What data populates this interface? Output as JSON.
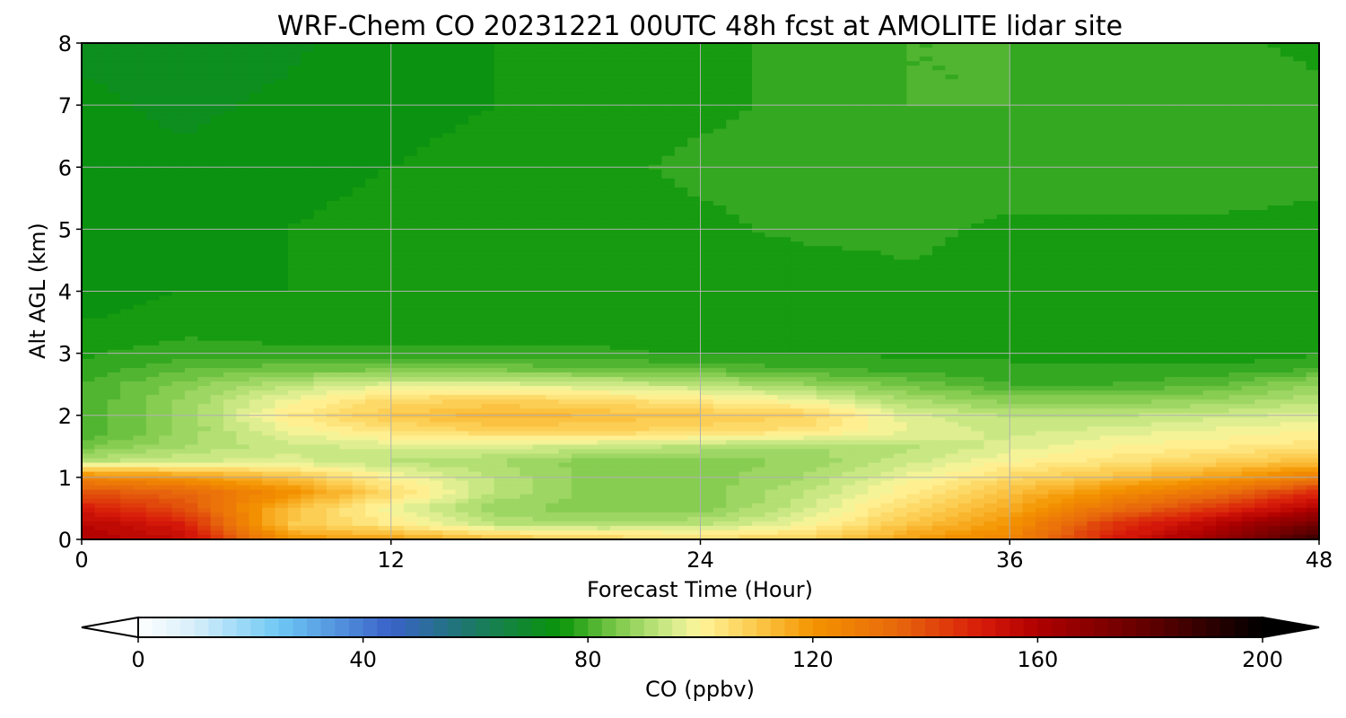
{
  "chart_data": {
    "type": "heatmap",
    "title": "WRF-Chem CO  20231221 00UTC 48h fcst at AMOLITE lidar site",
    "xlabel": "Forecast Time (Hour)",
    "ylabel": "Alt AGL (km)",
    "xlim": [
      0,
      48
    ],
    "ylim": [
      0,
      8
    ],
    "xticks": [
      "0",
      "12",
      "24",
      "36",
      "48"
    ],
    "yticks": [
      "0",
      "1",
      "2",
      "3",
      "4",
      "5",
      "6",
      "7",
      "8"
    ],
    "grid": true,
    "x": [
      0,
      4,
      8,
      12,
      16,
      20,
      24,
      28,
      32,
      36,
      40,
      44,
      48
    ],
    "y": [
      0,
      0.25,
      0.5,
      0.75,
      1.0,
      1.25,
      1.5,
      1.75,
      2.0,
      2.25,
      2.5,
      2.75,
      3.0,
      3.5,
      4,
      5,
      6,
      7,
      8
    ],
    "values": [
      [
        160,
        155,
        120,
        118,
        112,
        108,
        106,
        108,
        118,
        125,
        150,
        165,
        190
      ],
      [
        158,
        150,
        110,
        102,
        92,
        90,
        92,
        98,
        110,
        120,
        145,
        158,
        175
      ],
      [
        150,
        140,
        112,
        98,
        88,
        86,
        86,
        94,
        106,
        116,
        132,
        145,
        160
      ],
      [
        140,
        135,
        122,
        106,
        92,
        86,
        86,
        92,
        102,
        112,
        122,
        132,
        148
      ],
      [
        125,
        120,
        112,
        100,
        92,
        86,
        86,
        90,
        98,
        106,
        112,
        118,
        128
      ],
      [
        92,
        95,
        96,
        92,
        90,
        86,
        86,
        88,
        94,
        100,
        104,
        108,
        112
      ],
      [
        84,
        90,
        94,
        96,
        96,
        94,
        92,
        90,
        92,
        96,
        100,
        102,
        104
      ],
      [
        80,
        88,
        98,
        104,
        108,
        108,
        106,
        104,
        98,
        94,
        96,
        98,
        100
      ],
      [
        80,
        88,
        102,
        110,
        114,
        112,
        110,
        108,
        96,
        92,
        92,
        94,
        96
      ],
      [
        80,
        88,
        98,
        106,
        108,
        106,
        102,
        98,
        90,
        86,
        86,
        88,
        92
      ],
      [
        80,
        86,
        92,
        96,
        96,
        94,
        92,
        88,
        84,
        80,
        80,
        82,
        88
      ],
      [
        78,
        82,
        84,
        84,
        84,
        83,
        82,
        80,
        79,
        78,
        78,
        78,
        80
      ],
      [
        77,
        79,
        78,
        78,
        78,
        78,
        77,
        77,
        77,
        77,
        76,
        76,
        77
      ],
      [
        75,
        76,
        76,
        76,
        76,
        76,
        76,
        76,
        76,
        76,
        75,
        75,
        76
      ],
      [
        74,
        75,
        75,
        76,
        75,
        75,
        75,
        76,
        77,
        77,
        76,
        75,
        76
      ],
      [
        73,
        74,
        75,
        76,
        76,
        76,
        77,
        78,
        78,
        77,
        77,
        77,
        77
      ],
      [
        73,
        73,
        74,
        75,
        76,
        77,
        78,
        78,
        79,
        79,
        79,
        79,
        78
      ],
      [
        73,
        72,
        73,
        74,
        75,
        76,
        77,
        78,
        80,
        80,
        80,
        79,
        78
      ],
      [
        72,
        71,
        72,
        74,
        75,
        76,
        77,
        78,
        80,
        80,
        79,
        78,
        77
      ]
    ],
    "colorbar": {
      "label": "CO  (ppbv)",
      "ticks": [
        "0",
        "40",
        "80",
        "120",
        "160",
        "200"
      ],
      "range": [
        0,
        200
      ],
      "extend": "both"
    },
    "colors": {
      "stops": [
        [
          0,
          "#ffffff"
        ],
        [
          10,
          "#d7eefa"
        ],
        [
          25,
          "#6ec8f5"
        ],
        [
          45,
          "#3a62c8"
        ],
        [
          60,
          "#1a7a62"
        ],
        [
          75,
          "#089408"
        ],
        [
          85,
          "#7cc84a"
        ],
        [
          95,
          "#d4ec8c"
        ],
        [
          100,
          "#fff59a"
        ],
        [
          110,
          "#fcc84a"
        ],
        [
          120,
          "#f49400"
        ],
        [
          135,
          "#e8680c"
        ],
        [
          150,
          "#d81a0a"
        ],
        [
          160,
          "#b00000"
        ],
        [
          180,
          "#600000"
        ],
        [
          200,
          "#000000"
        ]
      ]
    }
  }
}
